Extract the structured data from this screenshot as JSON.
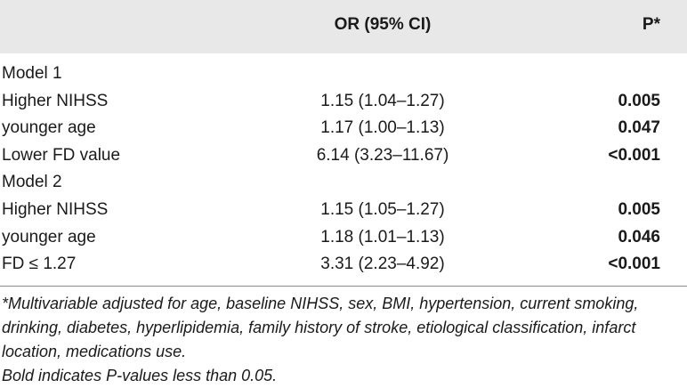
{
  "table": {
    "header": {
      "or_label": "OR (95% CI)",
      "p_label": "P*"
    },
    "rows": [
      {
        "label": "Model 1",
        "or": "",
        "p": ""
      },
      {
        "label": "Higher NIHSS",
        "or": "1.15 (1.04–1.27)",
        "p": "0.005"
      },
      {
        "label": "younger age",
        "or": "1.17 (1.00–1.13)",
        "p": "0.047"
      },
      {
        "label": "Lower FD value",
        "or": "6.14 (3.23–11.67)",
        "p": "<0.001"
      },
      {
        "label": "Model 2",
        "or": "",
        "p": ""
      },
      {
        "label": "Higher NIHSS",
        "or": "1.15 (1.05–1.27)",
        "p": "0.005"
      },
      {
        "label": "younger age",
        "or": "1.18 (1.01–1.13)",
        "p": "0.046"
      },
      {
        "label": "FD ≤ 1.27",
        "or": "3.31 (2.23–4.92)",
        "p": "<0.001"
      }
    ]
  },
  "footnote": {
    "adjusted": "*Multivariable adjusted for age, baseline NIHSS, sex, BMI, hypertension, current smoking, drinking, diabetes, hyperlipidemia, family history of stroke, etiological classification, infarct location, medications use.",
    "bold_note": "Bold indicates P-values less than 0.05."
  }
}
